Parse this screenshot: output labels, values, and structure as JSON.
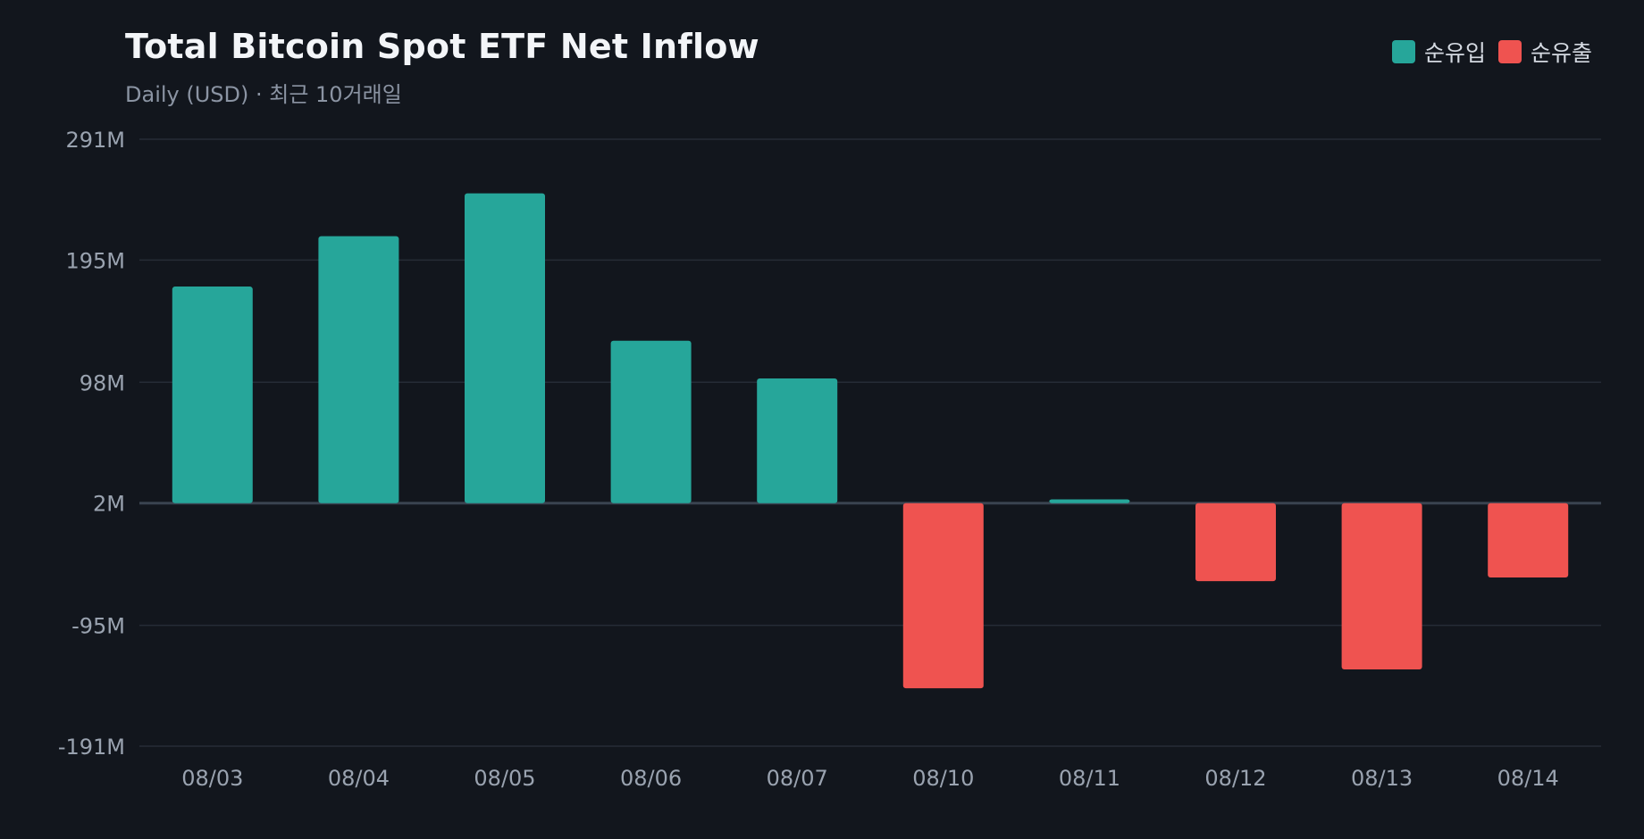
{
  "chart_data": {
    "type": "bar",
    "title": "Total Bitcoin Spot ETF Net Inflow",
    "subtitle": "Daily (USD) · 최근 10거래일",
    "categories": [
      "08/03",
      "08/04",
      "08/05",
      "08/06",
      "08/07",
      "08/10",
      "08/11",
      "08/12",
      "08/13",
      "08/14"
    ],
    "values": [
      174,
      214,
      248,
      131,
      101,
      -145,
      5,
      -60,
      -130,
      -57
    ],
    "value_unit": "M",
    "ylim": [
      -191,
      291
    ],
    "yticks": [
      291,
      195,
      98,
      2,
      -95,
      -191
    ],
    "ytick_labels": [
      "291M",
      "195M",
      "98M",
      "2M",
      "-95M",
      "-191M"
    ],
    "zero_line": 2,
    "grid": true,
    "legend": {
      "placement": "top-right",
      "entries": [
        {
          "label": "순유입",
          "color": "#26a69a"
        },
        {
          "label": "순유출",
          "color": "#ef5350"
        }
      ]
    },
    "colors": {
      "positive": "#26a69a",
      "negative": "#ef5350",
      "grid": "#262c36",
      "axis": "#3a4350",
      "tick_text": "#9aa3b0"
    }
  }
}
